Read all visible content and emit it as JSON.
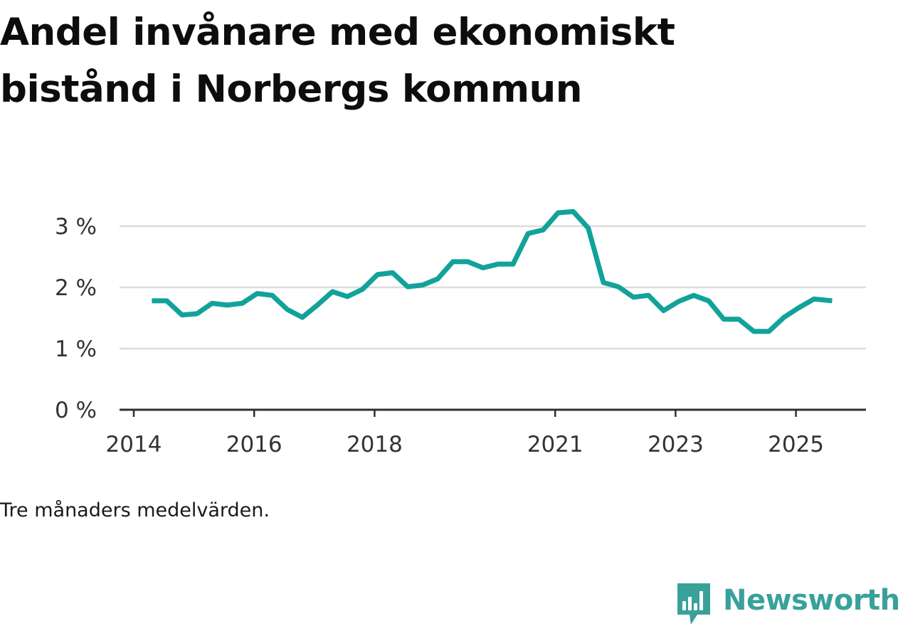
{
  "colors": {
    "line": "#12a29a",
    "grid": "#dcdcdc",
    "axis": "#2f2f2f",
    "brand": "#3aa19a"
  },
  "header": {
    "title": "Andel invånare med ekonomiskt bistånd i Norbergs kommun"
  },
  "caption": "Tre månaders medelvärden.",
  "brand": {
    "name": "Newsworthy",
    "icon": "newsworthy-logo-icon"
  },
  "chart_data": {
    "type": "line",
    "title": "Andel invånare med ekonomiskt bistånd i Norbergs kommun",
    "xlabel": "",
    "ylabel": "",
    "ylim": [
      0,
      3.4
    ],
    "xlim": [
      2014.0,
      2026.2
    ],
    "grid": true,
    "y_ticks": [
      {
        "value": 0,
        "label": "0 %"
      },
      {
        "value": 1,
        "label": "1 %"
      },
      {
        "value": 2,
        "label": "2 %"
      },
      {
        "value": 3,
        "label": "3 %"
      }
    ],
    "x_ticks": [
      {
        "value": 2014,
        "label": "2014"
      },
      {
        "value": 2016,
        "label": "2016"
      },
      {
        "value": 2018,
        "label": "2018"
      },
      {
        "value": 2021,
        "label": "2021"
      },
      {
        "value": 2023,
        "label": "2023"
      },
      {
        "value": 2025,
        "label": "2025"
      }
    ],
    "series": [
      {
        "name": "Andel invånare med ekonomiskt bistånd",
        "x": [
          2014.3,
          2014.55,
          2014.8,
          2015.05,
          2015.3,
          2015.55,
          2015.8,
          2016.05,
          2016.3,
          2016.55,
          2016.8,
          2017.05,
          2017.3,
          2017.55,
          2017.8,
          2018.05,
          2018.3,
          2018.55,
          2018.8,
          2019.05,
          2019.3,
          2019.55,
          2019.8,
          2020.05,
          2020.3,
          2020.55,
          2020.8,
          2021.05,
          2021.3,
          2021.55,
          2021.8,
          2022.05,
          2022.3,
          2022.55,
          2022.8,
          2023.05,
          2023.3,
          2023.55,
          2023.8,
          2024.05,
          2024.3,
          2024.55,
          2024.8,
          2025.05,
          2025.3,
          2025.6
        ],
        "values": [
          1.78,
          1.78,
          1.55,
          1.57,
          1.74,
          1.71,
          1.74,
          1.9,
          1.87,
          1.64,
          1.51,
          1.71,
          1.93,
          1.85,
          1.97,
          2.21,
          2.24,
          2.01,
          2.04,
          2.14,
          2.42,
          2.42,
          2.32,
          2.38,
          2.38,
          2.88,
          2.94,
          3.22,
          3.24,
          2.97,
          2.08,
          2.01,
          1.84,
          1.87,
          1.62,
          1.77,
          1.87,
          1.78,
          1.48,
          1.48,
          1.28,
          1.28,
          1.51,
          1.67,
          1.81,
          1.78
        ]
      }
    ]
  }
}
